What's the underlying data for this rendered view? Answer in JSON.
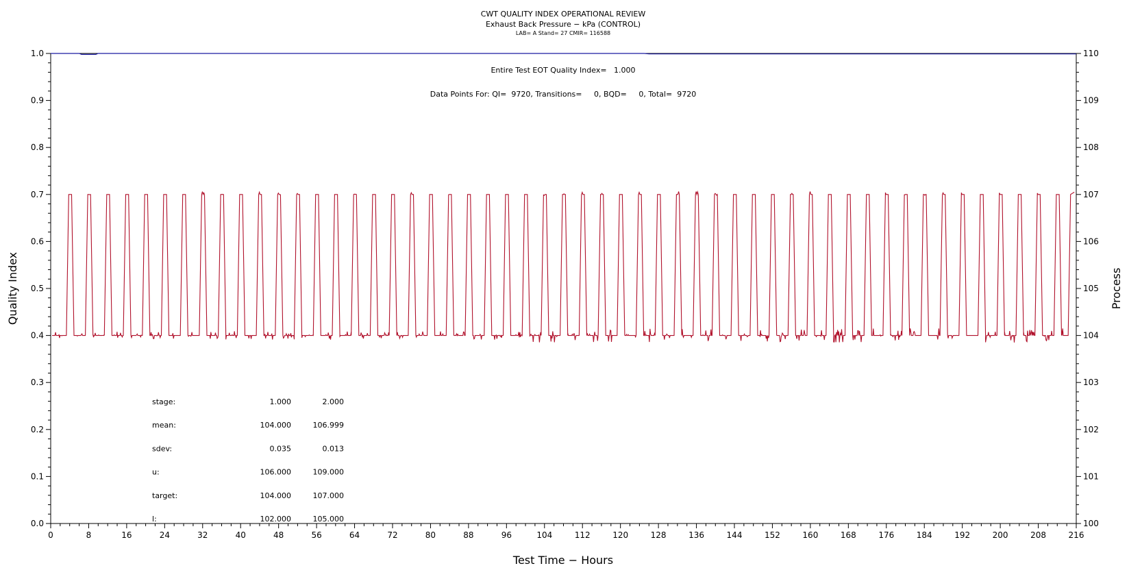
{
  "header": {
    "title": "CWT QUALITY INDEX OPERATIONAL REVIEW",
    "subtitle": "Exhaust Back Pressure − kPa (CONTROL)",
    "caption": "LAB= A Stand= 27 CMIR= 116588"
  },
  "annotations": {
    "eot_qi": "Entire Test EOT Quality Index=   1.000",
    "data_points": "Data Points For: QI=  9720, Transitions=     0, BQD=     0, Total=  9720"
  },
  "stats": {
    "rows": [
      {
        "label": "stage:",
        "v1": "1.000",
        "v2": "2.000"
      },
      {
        "label": "mean:",
        "v1": "104.000",
        "v2": "106.999"
      },
      {
        "label": "sdev:",
        "v1": "0.035",
        "v2": "0.013"
      },
      {
        "label": "u:",
        "v1": "106.000",
        "v2": "109.000"
      },
      {
        "label": "target:",
        "v1": "104.000",
        "v2": "107.000"
      },
      {
        "label": "l:",
        "v1": "102.000",
        "v2": "105.000"
      }
    ]
  },
  "colors": {
    "process_line": "#b0102a",
    "qi_line": "#1a1aa0",
    "axis": "#000000"
  },
  "chart_data": {
    "type": "line",
    "title": "CWT QUALITY INDEX OPERATIONAL REVIEW",
    "subtitle": "Exhaust Back Pressure − kPa (CONTROL)",
    "xlabel": "Test Time − Hours",
    "ylabel_left": "Quality Index",
    "ylabel_right": "Process",
    "xlim": [
      0,
      216
    ],
    "ylim_left": [
      0.0,
      1.0
    ],
    "ylim_right": [
      100,
      110
    ],
    "x_ticks": [
      "0",
      "8",
      "16",
      "24",
      "32",
      "40",
      "48",
      "56",
      "64",
      "72",
      "80",
      "88",
      "96",
      "104",
      "112",
      "120",
      "128",
      "136",
      "144",
      "152",
      "160",
      "168",
      "176",
      "184",
      "192",
      "200",
      "208",
      "216"
    ],
    "y_ticks_left": [
      "0.0",
      "0.1",
      "0.2",
      "0.3",
      "0.4",
      "0.5",
      "0.6",
      "0.7",
      "0.8",
      "0.9",
      "1.0"
    ],
    "y_ticks_right": [
      "100",
      "101",
      "102",
      "103",
      "104",
      "105",
      "106",
      "107",
      "108",
      "109",
      "110"
    ],
    "grid": false,
    "series": [
      {
        "name": "Quality Index",
        "axis": "left",
        "x": [
          0,
          6,
          6.5,
          9.5,
          10,
          125,
          126,
          216
        ],
        "y": [
          1.0,
          1.0,
          0.998,
          0.998,
          1.0,
          1.0,
          0.999,
          0.999
        ]
      },
      {
        "name": "Process",
        "axis": "right",
        "low_value": 104.0,
        "high_value": 107.0,
        "start_x": 0.3,
        "high_intervals": [
          [
            3.3,
            3.9
          ],
          [
            7.3,
            7.9
          ],
          [
            11.3,
            11.9
          ],
          [
            15.3,
            15.9
          ],
          [
            19.3,
            19.9
          ],
          [
            23.3,
            23.9
          ],
          [
            27.3,
            27.9
          ],
          [
            31.3,
            31.9
          ],
          [
            35.3,
            35.9
          ],
          [
            39.3,
            39.9
          ],
          [
            43.3,
            43.9
          ],
          [
            47.3,
            47.9
          ],
          [
            51.3,
            51.9
          ],
          [
            55.3,
            55.9
          ],
          [
            59.3,
            59.9
          ],
          [
            63.3,
            63.9
          ],
          [
            67.3,
            67.9
          ],
          [
            71.3,
            71.9
          ],
          [
            75.3,
            75.9
          ],
          [
            79.3,
            79.9
          ],
          [
            83.3,
            83.9
          ],
          [
            87.3,
            87.9
          ],
          [
            91.3,
            91.9
          ],
          [
            95.3,
            95.9
          ],
          [
            99.3,
            99.9
          ],
          [
            103.3,
            103.9
          ],
          [
            107.3,
            107.9
          ],
          [
            111.3,
            111.9
          ],
          [
            115.3,
            115.9
          ],
          [
            119.3,
            119.9
          ],
          [
            123.3,
            123.9
          ],
          [
            127.3,
            127.9
          ],
          [
            131.3,
            131.9
          ],
          [
            135.3,
            135.9
          ],
          [
            139.3,
            139.9
          ],
          [
            143.3,
            143.9
          ],
          [
            147.3,
            147.9
          ],
          [
            151.3,
            151.9
          ],
          [
            155.3,
            155.9
          ],
          [
            159.3,
            159.9
          ],
          [
            163.3,
            163.9
          ],
          [
            167.3,
            167.9
          ],
          [
            171.3,
            171.9
          ],
          [
            175.3,
            175.9
          ],
          [
            179.3,
            179.9
          ],
          [
            183.3,
            183.9
          ],
          [
            187.3,
            187.9
          ],
          [
            191.3,
            191.9
          ],
          [
            195.3,
            195.9
          ],
          [
            199.3,
            199.9
          ],
          [
            203.3,
            203.9
          ],
          [
            207.3,
            207.9
          ],
          [
            211.3,
            211.9
          ]
        ],
        "ramp_hours": 0.5,
        "noise_low": 0.15,
        "noise_high": 0.1
      }
    ]
  }
}
